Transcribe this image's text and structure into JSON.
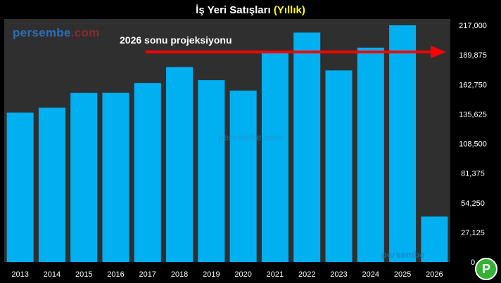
{
  "title": {
    "main": "İş Yeri Satışları",
    "accent": "(Yıllık)"
  },
  "logo": {
    "part1": "persembe",
    "part2": ".com"
  },
  "watermarks": {
    "center": "persembe.com",
    "bottom": "persembe"
  },
  "badge": {
    "label": "P"
  },
  "annotation": {
    "label": "2026 sonu projeksiyonu"
  },
  "colors": {
    "bar": "#00b0f0",
    "arrow": "#ff0000",
    "background": "#000000",
    "plot_background": "#2f2f2f",
    "accent": "#ffff00"
  },
  "chart_data": {
    "type": "bar",
    "categories": [
      "2013",
      "2014",
      "2015",
      "2016",
      "2017",
      "2018",
      "2019",
      "2020",
      "2021",
      "2022",
      "2023",
      "2024",
      "2025",
      "2026"
    ],
    "values": [
      136900,
      141400,
      155100,
      155200,
      164100,
      178700,
      166700,
      157100,
      192400,
      210300,
      175600,
      196500,
      218000,
      41600
    ],
    "ylim": [
      0,
      217000
    ],
    "ytick_labels": [
      "0",
      "27,125",
      "54,250",
      "81,375",
      "108,500",
      "135,625",
      "162,750",
      "189,875",
      "217,000"
    ],
    "ytick_values": [
      0,
      27125,
      54250,
      81375,
      108500,
      135625,
      162750,
      189875,
      217000
    ],
    "projection_level": 192500,
    "grid": false,
    "legend": "none",
    "y_axis_side": "right"
  }
}
